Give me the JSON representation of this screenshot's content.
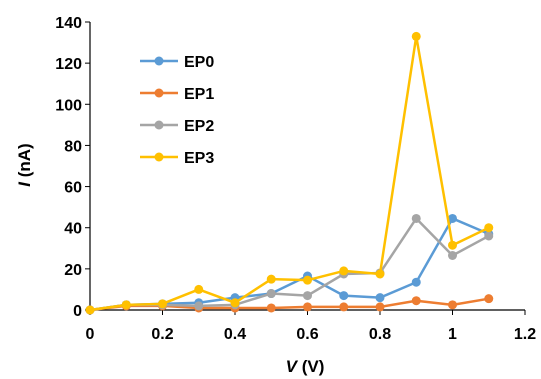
{
  "chart_data": {
    "type": "line",
    "title": "",
    "xlabel": {
      "var": "V",
      "unit": " (V)"
    },
    "ylabel": {
      "var": "I",
      "unit": " (nA)"
    },
    "xlim": [
      0,
      1.2
    ],
    "ylim": [
      0,
      140
    ],
    "xticks": [
      "0",
      "0.2",
      "0.4",
      "0.6",
      "0.8",
      "1",
      "1.2"
    ],
    "yticks": [
      "0",
      "20",
      "40",
      "60",
      "80",
      "100",
      "120",
      "140"
    ],
    "grid": false,
    "legend": "top-left",
    "x": [
      0,
      0.1,
      0.2,
      0.3,
      0.4,
      0.5,
      0.6,
      0.7,
      0.8,
      0.9,
      1.0,
      1.1
    ],
    "series": [
      {
        "name": "EP0",
        "color": "#5B9BD5",
        "values": [
          0,
          2.5,
          3,
          3.5,
          6,
          8,
          16.5,
          7,
          6,
          13.5,
          44.5,
          37
        ]
      },
      {
        "name": "EP1",
        "color": "#ED7D31",
        "values": [
          0,
          2,
          2,
          1,
          1,
          1,
          1.5,
          1.5,
          1.5,
          4.5,
          2.5,
          5.5
        ]
      },
      {
        "name": "EP2",
        "color": "#A5A5A5",
        "values": [
          0,
          2.5,
          2.5,
          2,
          2.5,
          8,
          7,
          17.5,
          18,
          44.5,
          26.5,
          36
        ]
      },
      {
        "name": "EP3",
        "color": "#FFC000",
        "values": [
          0,
          2.5,
          3,
          10,
          3.5,
          15,
          14.5,
          19,
          17.5,
          133,
          31.5,
          40
        ]
      }
    ]
  }
}
